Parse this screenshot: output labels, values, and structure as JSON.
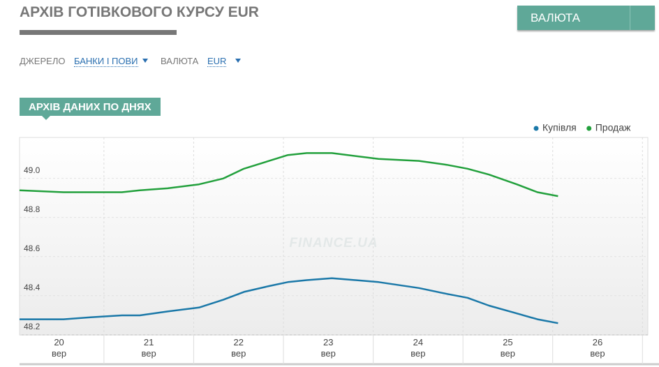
{
  "header": {
    "title": "АРХІВ ГОТІВКОВОГО КУРСУ EUR",
    "button": "ВАЛЮТА"
  },
  "filters": [
    {
      "label": "ДЖЕРЕЛО",
      "value": "БАНКИ І ПОВИ"
    },
    {
      "label": "ВАЛЮТА",
      "value": "EUR"
    }
  ],
  "tab": "АРХІВ ДАНИХ ПО ДНЯХ",
  "chart_data": {
    "type": "line",
    "watermark": "FINANCE.UA",
    "legend": "top-right",
    "grid": true,
    "x": [
      19.56,
      20.05,
      20.35,
      20.7,
      20.9,
      21.21,
      21.56,
      21.83,
      22.06,
      22.34,
      22.55,
      22.76,
      23.04,
      23.56,
      24.01,
      24.32,
      24.55,
      24.79,
      25.1,
      25.33,
      25.56
    ],
    "series": [
      {
        "name": "Купівля",
        "color": "#1a78a8",
        "values": [
          48.24,
          48.24,
          48.25,
          48.26,
          48.26,
          48.28,
          48.3,
          48.34,
          48.38,
          48.41,
          48.43,
          48.44,
          48.45,
          48.43,
          48.4,
          48.37,
          48.35,
          48.31,
          48.27,
          48.24,
          48.22
        ]
      },
      {
        "name": "Продаж",
        "color": "#22a03c",
        "values": [
          48.9,
          48.89,
          48.89,
          48.89,
          48.9,
          48.91,
          48.93,
          48.96,
          49.01,
          49.05,
          49.08,
          49.09,
          49.09,
          49.06,
          49.05,
          49.03,
          49.01,
          48.98,
          48.93,
          48.89,
          48.87
        ]
      }
    ],
    "xlim": [
      19.56,
      26.56
    ],
    "xticks": [
      {
        "value": 20,
        "label": "20 вер"
      },
      {
        "value": 21,
        "label": "21 вер"
      },
      {
        "value": 22,
        "label": "22 вер"
      },
      {
        "value": 23,
        "label": "23 вер"
      },
      {
        "value": 24,
        "label": "24 вер"
      },
      {
        "value": 25,
        "label": "25 вер"
      },
      {
        "value": 26,
        "label": "26 вер"
      }
    ],
    "ylim": [
      48.16,
      49.17
    ],
    "yticks": [
      48.2,
      48.4,
      48.6,
      48.8,
      {
        "value": 49,
        "label": "49.0"
      }
    ]
  }
}
